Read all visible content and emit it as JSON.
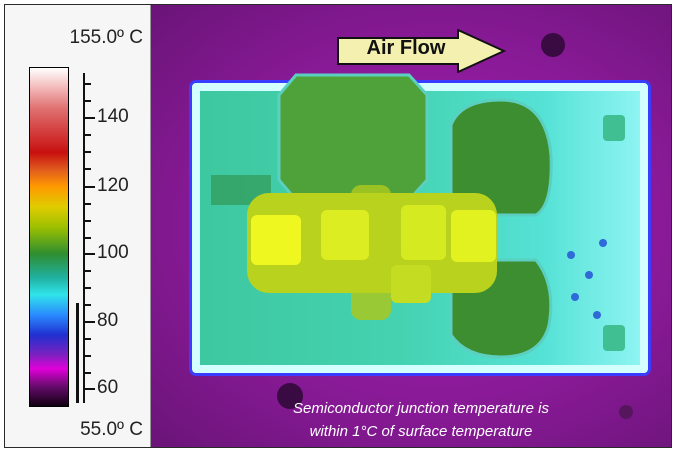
{
  "scale": {
    "max_label": "155.0º C",
    "min_label": "55.0º C",
    "ticks": [
      "140",
      "120",
      "100",
      "80",
      "60"
    ]
  },
  "thermal_image": {
    "arrow_label": "Air Flow",
    "caption_line1": "Semiconductor junction temperature is",
    "caption_line2": "within 1°C of surface temperature"
  },
  "colors": {
    "background_purple": "#8a1a98",
    "board_cyan": "#55e2d6",
    "hotspot_yellow": "#e6f020",
    "inductor_green": "#3c8e30"
  }
}
